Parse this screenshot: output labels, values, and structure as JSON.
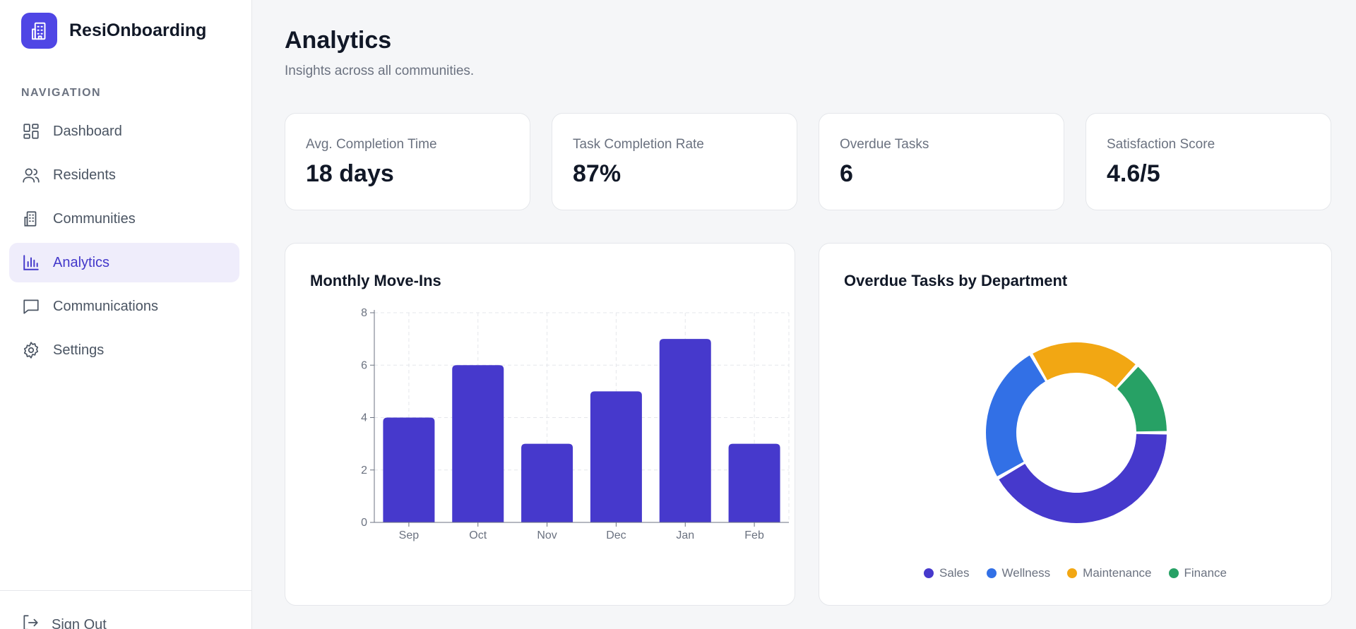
{
  "app": {
    "name": "ResiOnboarding",
    "logo_icon": "building-icon",
    "accent": "#4f46e5"
  },
  "sidebar": {
    "heading": "NAVIGATION",
    "items": [
      {
        "label": "Dashboard",
        "icon": "dashboard-icon",
        "active": false
      },
      {
        "label": "Residents",
        "icon": "users-icon",
        "active": false
      },
      {
        "label": "Communities",
        "icon": "building-icon",
        "active": false
      },
      {
        "label": "Analytics",
        "icon": "bar-chart-icon",
        "active": true
      },
      {
        "label": "Communications",
        "icon": "message-icon",
        "active": false
      },
      {
        "label": "Settings",
        "icon": "gear-icon",
        "active": false
      }
    ],
    "signout": {
      "label": "Sign Out",
      "icon": "sign-out-icon"
    }
  },
  "page": {
    "title": "Analytics",
    "subtitle": "Insights across all communities."
  },
  "kpis": [
    {
      "label": "Avg. Completion Time",
      "value": "18 days"
    },
    {
      "label": "Task Completion Rate",
      "value": "87%"
    },
    {
      "label": "Overdue Tasks",
      "value": "6"
    },
    {
      "label": "Satisfaction Score",
      "value": "4.6/5"
    }
  ],
  "chart_data": [
    {
      "type": "bar",
      "title": "Monthly Move-Ins",
      "categories": [
        "Sep",
        "Oct",
        "Nov",
        "Dec",
        "Jan",
        "Feb"
      ],
      "values": [
        4,
        6,
        3,
        5,
        7,
        3
      ],
      "ylim": [
        0,
        8
      ],
      "yticks": [
        0,
        2,
        4,
        6,
        8
      ],
      "grid": true,
      "color": "#4639cc"
    },
    {
      "type": "pie",
      "title": "Overdue Tasks by Department",
      "donut": true,
      "categories": [
        "Sales",
        "Wellness",
        "Maintenance",
        "Finance"
      ],
      "values": [
        2.5,
        1.5,
        1.2,
        0.8
      ],
      "colors": [
        "#4639cc",
        "#3270e6",
        "#f2a713",
        "#27a165"
      ],
      "legend": "bottom"
    }
  ]
}
